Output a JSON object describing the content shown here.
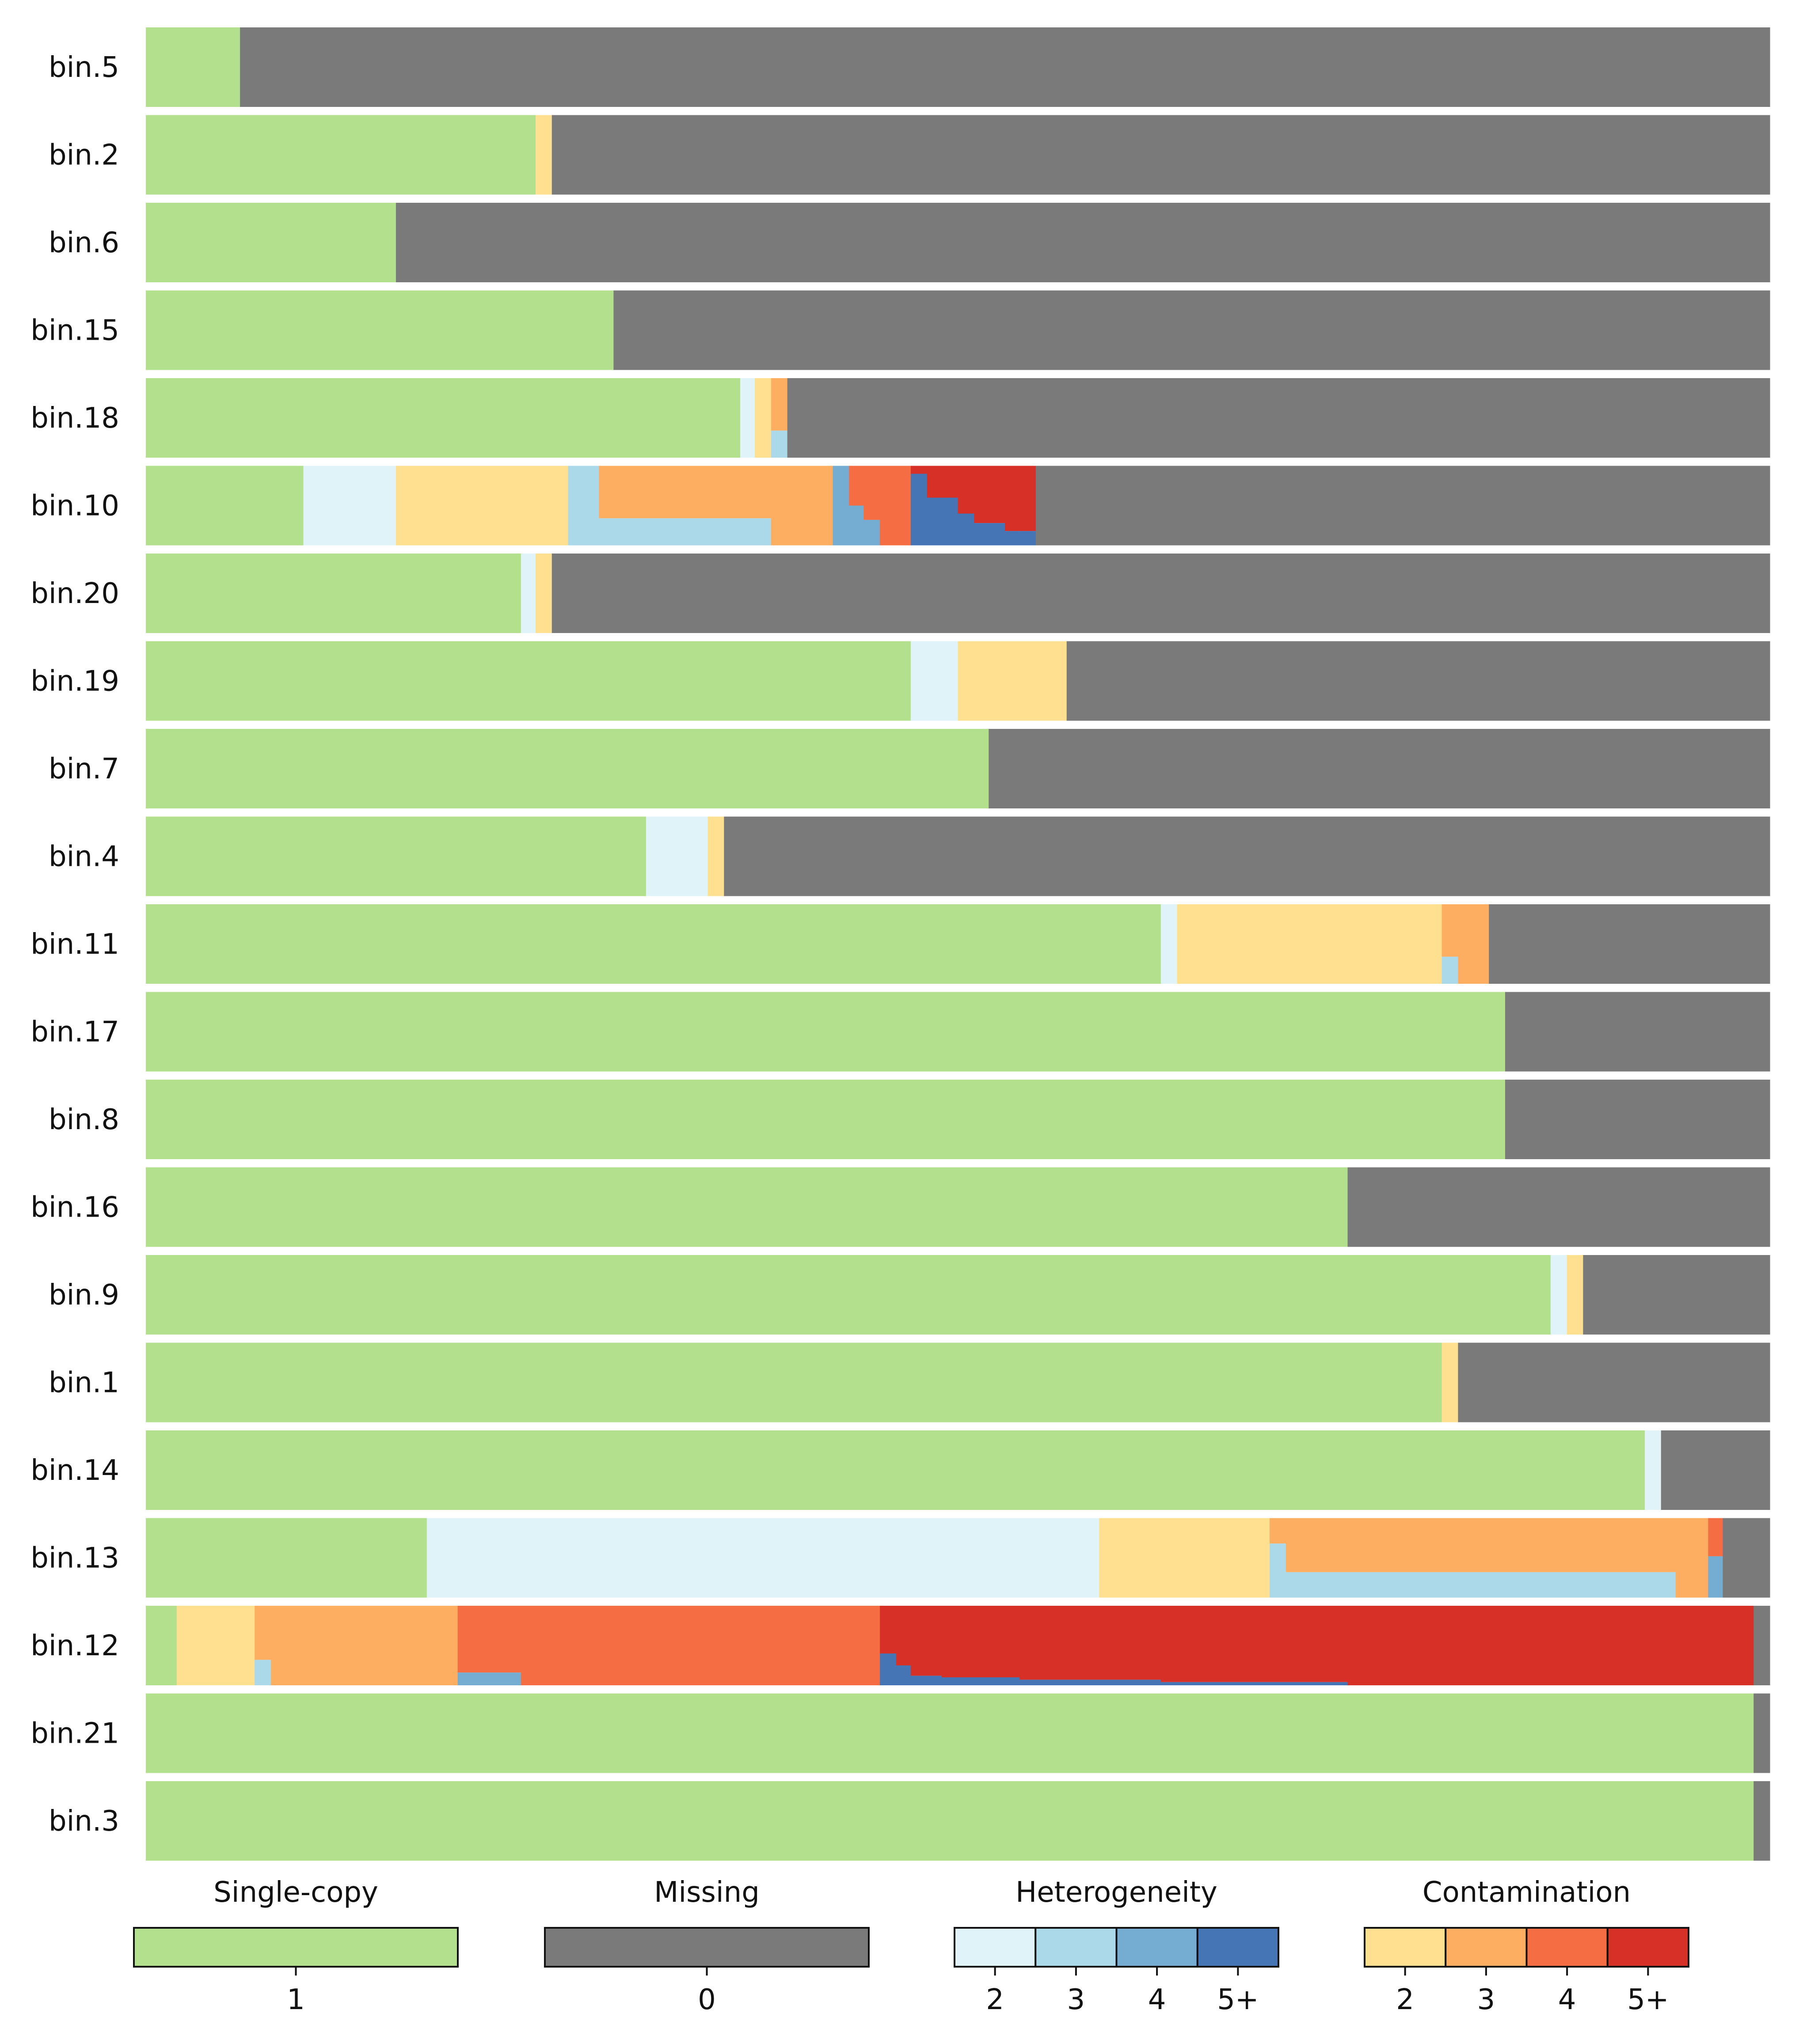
{
  "chart_data": {
    "type": "bar",
    "orientation": "horizontal",
    "stacked": true,
    "x_range": [
      0,
      1
    ],
    "colors": {
      "single": "#b3e08c",
      "missing": "#7a7a7a",
      "het": [
        "#e0f3f8",
        "#abd9e9",
        "#74add1",
        "#4575b4"
      ],
      "con": [
        "#fee090",
        "#fdae61",
        "#f46d43",
        "#d73027"
      ]
    },
    "legend": {
      "groups": [
        {
          "title": "Single-copy",
          "labels": [
            "1"
          ],
          "colors": [
            "#b3e08c"
          ]
        },
        {
          "title": "Missing",
          "labels": [
            "0"
          ],
          "colors": [
            "#7a7a7a"
          ]
        },
        {
          "title": "Heterogeneity",
          "labels": [
            "2",
            "3",
            "4",
            "5+"
          ],
          "colors": [
            "#e0f3f8",
            "#abd9e9",
            "#74add1",
            "#4575b4"
          ]
        },
        {
          "title": "Contamination",
          "labels": [
            "2",
            "3",
            "4",
            "5+"
          ],
          "colors": [
            "#fee090",
            "#fdae61",
            "#f46d43",
            "#d73027"
          ]
        }
      ]
    },
    "bins": [
      {
        "name": "bin.5",
        "segments": [
          {
            "x0": 0,
            "x1": 0.058,
            "color": "single"
          },
          {
            "x0": 0.058,
            "x1": 1.0,
            "color": "missing"
          }
        ]
      },
      {
        "name": "bin.2",
        "segments": [
          {
            "x0": 0,
            "x1": 0.24,
            "color": "single"
          },
          {
            "x0": 0.24,
            "x1": 0.25,
            "color": "con2"
          },
          {
            "x0": 0.25,
            "x1": 1.0,
            "color": "missing"
          }
        ]
      },
      {
        "name": "bin.6",
        "segments": [
          {
            "x0": 0,
            "x1": 0.154,
            "color": "single"
          },
          {
            "x0": 0.154,
            "x1": 1.0,
            "color": "missing"
          }
        ]
      },
      {
        "name": "bin.15",
        "segments": [
          {
            "x0": 0,
            "x1": 0.288,
            "color": "single"
          },
          {
            "x0": 0.288,
            "x1": 1.0,
            "color": "missing"
          }
        ]
      },
      {
        "name": "bin.18",
        "segments": [
          {
            "x0": 0,
            "x1": 0.366,
            "color": "single"
          },
          {
            "x0": 0.366,
            "x1": 0.375,
            "color": "het2"
          },
          {
            "x0": 0.375,
            "x1": 0.385,
            "color": "con2"
          },
          {
            "x0": 0.385,
            "x1": 0.395,
            "color": "con3",
            "y1": 0.66
          },
          {
            "x0": 0.385,
            "x1": 0.395,
            "color": "het3",
            "y0": 0.66
          },
          {
            "x0": 0.395,
            "x1": 1.0,
            "color": "missing"
          }
        ]
      },
      {
        "name": "bin.10",
        "segments": [
          {
            "x0": 0,
            "x1": 0.097,
            "color": "single"
          },
          {
            "x0": 0.097,
            "x1": 0.154,
            "color": "het2"
          },
          {
            "x0": 0.154,
            "x1": 0.26,
            "color": "con2"
          },
          {
            "x0": 0.26,
            "x1": 0.279,
            "color": "het3"
          },
          {
            "x0": 0.279,
            "x1": 0.385,
            "color": "con3",
            "y1": 0.66
          },
          {
            "x0": 0.279,
            "x1": 0.385,
            "color": "het3",
            "y0": 0.66
          },
          {
            "x0": 0.385,
            "x1": 0.423,
            "color": "con3"
          },
          {
            "x0": 0.423,
            "x1": 0.433,
            "color": "het4"
          },
          {
            "x0": 0.433,
            "x1": 0.442,
            "color": "con4",
            "y1": 0.5
          },
          {
            "x0": 0.433,
            "x1": 0.442,
            "color": "het4",
            "y0": 0.5
          },
          {
            "x0": 0.442,
            "x1": 0.452,
            "color": "con4",
            "y1": 0.68
          },
          {
            "x0": 0.442,
            "x1": 0.452,
            "color": "het4",
            "y0": 0.68
          },
          {
            "x0": 0.452,
            "x1": 0.471,
            "color": "con4"
          },
          {
            "x0": 0.471,
            "x1": 0.481,
            "color": "het5",
            "y0": 0.1
          },
          {
            "x0": 0.471,
            "x1": 0.481,
            "color": "con5",
            "y1": 0.1
          },
          {
            "x0": 0.481,
            "x1": 0.5,
            "color": "con5",
            "y1": 0.4
          },
          {
            "x0": 0.481,
            "x1": 0.5,
            "color": "het5",
            "y0": 0.4
          },
          {
            "x0": 0.5,
            "x1": 0.51,
            "color": "con5",
            "y1": 0.6
          },
          {
            "x0": 0.5,
            "x1": 0.51,
            "color": "het5",
            "y0": 0.6
          },
          {
            "x0": 0.51,
            "x1": 0.529,
            "color": "con5",
            "y1": 0.72
          },
          {
            "x0": 0.51,
            "x1": 0.529,
            "color": "het5",
            "y0": 0.72
          },
          {
            "x0": 0.529,
            "x1": 0.539,
            "color": "con5",
            "y1": 0.82
          },
          {
            "x0": 0.529,
            "x1": 0.539,
            "color": "het5",
            "y0": 0.82
          },
          {
            "x0": 0.539,
            "x1": 0.548,
            "color": "con5",
            "y1": 0.82
          },
          {
            "x0": 0.539,
            "x1": 0.548,
            "color": "het5",
            "y0": 0.82
          },
          {
            "x0": 0.548,
            "x1": 1.0,
            "color": "missing"
          }
        ]
      },
      {
        "name": "bin.20",
        "segments": [
          {
            "x0": 0,
            "x1": 0.231,
            "color": "single"
          },
          {
            "x0": 0.231,
            "x1": 0.24,
            "color": "het2"
          },
          {
            "x0": 0.24,
            "x1": 0.25,
            "color": "con2"
          },
          {
            "x0": 0.25,
            "x1": 1.0,
            "color": "missing"
          }
        ]
      },
      {
        "name": "bin.19",
        "segments": [
          {
            "x0": 0,
            "x1": 0.471,
            "color": "single"
          },
          {
            "x0": 0.471,
            "x1": 0.5,
            "color": "het2"
          },
          {
            "x0": 0.5,
            "x1": 0.567,
            "color": "con2"
          },
          {
            "x0": 0.567,
            "x1": 1.0,
            "color": "missing"
          }
        ]
      },
      {
        "name": "bin.7",
        "segments": [
          {
            "x0": 0,
            "x1": 0.519,
            "color": "single"
          },
          {
            "x0": 0.519,
            "x1": 1.0,
            "color": "missing"
          }
        ]
      },
      {
        "name": "bin.4",
        "segments": [
          {
            "x0": 0,
            "x1": 0.308,
            "color": "single"
          },
          {
            "x0": 0.308,
            "x1": 0.346,
            "color": "het2"
          },
          {
            "x0": 0.346,
            "x1": 0.356,
            "color": "con2"
          },
          {
            "x0": 0.356,
            "x1": 1.0,
            "color": "missing"
          }
        ]
      },
      {
        "name": "bin.11",
        "segments": [
          {
            "x0": 0,
            "x1": 0.625,
            "color": "single"
          },
          {
            "x0": 0.625,
            "x1": 0.635,
            "color": "het2"
          },
          {
            "x0": 0.635,
            "x1": 0.798,
            "color": "con2"
          },
          {
            "x0": 0.798,
            "x1": 0.808,
            "color": "con3",
            "y1": 0.66
          },
          {
            "x0": 0.798,
            "x1": 0.808,
            "color": "het3",
            "y0": 0.66
          },
          {
            "x0": 0.808,
            "x1": 0.827,
            "color": "con3"
          },
          {
            "x0": 0.827,
            "x1": 1.0,
            "color": "missing"
          }
        ]
      },
      {
        "name": "bin.17",
        "segments": [
          {
            "x0": 0,
            "x1": 0.837,
            "color": "single"
          },
          {
            "x0": 0.837,
            "x1": 1.0,
            "color": "missing"
          }
        ]
      },
      {
        "name": "bin.8",
        "segments": [
          {
            "x0": 0,
            "x1": 0.837,
            "color": "single"
          },
          {
            "x0": 0.837,
            "x1": 1.0,
            "color": "missing"
          }
        ]
      },
      {
        "name": "bin.16",
        "segments": [
          {
            "x0": 0,
            "x1": 0.74,
            "color": "single"
          },
          {
            "x0": 0.74,
            "x1": 1.0,
            "color": "missing"
          }
        ]
      },
      {
        "name": "bin.9",
        "segments": [
          {
            "x0": 0,
            "x1": 0.865,
            "color": "single"
          },
          {
            "x0": 0.865,
            "x1": 0.875,
            "color": "het2"
          },
          {
            "x0": 0.875,
            "x1": 0.885,
            "color": "con2"
          },
          {
            "x0": 0.885,
            "x1": 1.0,
            "color": "missing"
          }
        ]
      },
      {
        "name": "bin.1",
        "segments": [
          {
            "x0": 0,
            "x1": 0.798,
            "color": "single"
          },
          {
            "x0": 0.798,
            "x1": 0.808,
            "color": "con2"
          },
          {
            "x0": 0.808,
            "x1": 1.0,
            "color": "missing"
          }
        ]
      },
      {
        "name": "bin.14",
        "segments": [
          {
            "x0": 0,
            "x1": 0.923,
            "color": "single"
          },
          {
            "x0": 0.923,
            "x1": 0.933,
            "color": "het2"
          },
          {
            "x0": 0.933,
            "x1": 1.0,
            "color": "missing"
          }
        ]
      },
      {
        "name": "bin.13",
        "segments": [
          {
            "x0": 0,
            "x1": 0.173,
            "color": "single"
          },
          {
            "x0": 0.173,
            "x1": 0.587,
            "color": "het2"
          },
          {
            "x0": 0.587,
            "x1": 0.692,
            "color": "con2"
          },
          {
            "x0": 0.692,
            "x1": 0.702,
            "color": "con3",
            "y1": 0.32
          },
          {
            "x0": 0.692,
            "x1": 0.702,
            "color": "het3",
            "y0": 0.32
          },
          {
            "x0": 0.702,
            "x1": 0.942,
            "color": "con3",
            "y1": 0.68
          },
          {
            "x0": 0.702,
            "x1": 0.942,
            "color": "het3",
            "y0": 0.68
          },
          {
            "x0": 0.942,
            "x1": 0.962,
            "color": "con3"
          },
          {
            "x0": 0.962,
            "x1": 0.971,
            "color": "con4",
            "y1": 0.48
          },
          {
            "x0": 0.962,
            "x1": 0.971,
            "color": "het4",
            "y0": 0.48
          },
          {
            "x0": 0.971,
            "x1": 1.0,
            "color": "missing"
          }
        ]
      },
      {
        "name": "bin.12",
        "segments": [
          {
            "x0": 0,
            "x1": 0.019,
            "color": "single"
          },
          {
            "x0": 0.019,
            "x1": 0.067,
            "color": "con2"
          },
          {
            "x0": 0.067,
            "x1": 0.077,
            "color": "con3",
            "y1": 0.68
          },
          {
            "x0": 0.067,
            "x1": 0.077,
            "color": "het3",
            "y0": 0.68
          },
          {
            "x0": 0.077,
            "x1": 0.192,
            "color": "con3"
          },
          {
            "x0": 0.192,
            "x1": 0.231,
            "color": "con4",
            "y1": 0.84
          },
          {
            "x0": 0.192,
            "x1": 0.231,
            "color": "het4",
            "y0": 0.84
          },
          {
            "x0": 0.231,
            "x1": 0.452,
            "color": "con4"
          },
          {
            "x0": 0.452,
            "x1": 0.462,
            "color": "con5",
            "y1": 0.6
          },
          {
            "x0": 0.452,
            "x1": 0.462,
            "color": "het5",
            "y0": 0.6
          },
          {
            "x0": 0.462,
            "x1": 0.471,
            "color": "con5",
            "y1": 0.75
          },
          {
            "x0": 0.462,
            "x1": 0.471,
            "color": "het5",
            "y0": 0.75
          },
          {
            "x0": 0.471,
            "x1": 0.49,
            "color": "con5",
            "y1": 0.88
          },
          {
            "x0": 0.471,
            "x1": 0.49,
            "color": "het5",
            "y0": 0.88
          },
          {
            "x0": 0.49,
            "x1": 0.538,
            "color": "con5",
            "y1": 0.9
          },
          {
            "x0": 0.49,
            "x1": 0.538,
            "color": "het5",
            "y0": 0.9
          },
          {
            "x0": 0.538,
            "x1": 0.625,
            "color": "con5",
            "y1": 0.93
          },
          {
            "x0": 0.538,
            "x1": 0.625,
            "color": "het5",
            "y0": 0.93
          },
          {
            "x0": 0.625,
            "x1": 0.74,
            "color": "con5",
            "y1": 0.96
          },
          {
            "x0": 0.625,
            "x1": 0.74,
            "color": "het5",
            "y0": 0.96
          },
          {
            "x0": 0.74,
            "x1": 0.99,
            "color": "con5"
          },
          {
            "x0": 0.99,
            "x1": 1.0,
            "color": "missing"
          }
        ]
      },
      {
        "name": "bin.21",
        "segments": [
          {
            "x0": 0,
            "x1": 0.99,
            "color": "single"
          },
          {
            "x0": 0.99,
            "x1": 1.0,
            "color": "missing"
          }
        ]
      },
      {
        "name": "bin.3",
        "segments": [
          {
            "x0": 0,
            "x1": 0.99,
            "color": "single"
          },
          {
            "x0": 0.99,
            "x1": 1.0,
            "color": "missing"
          }
        ]
      }
    ]
  }
}
